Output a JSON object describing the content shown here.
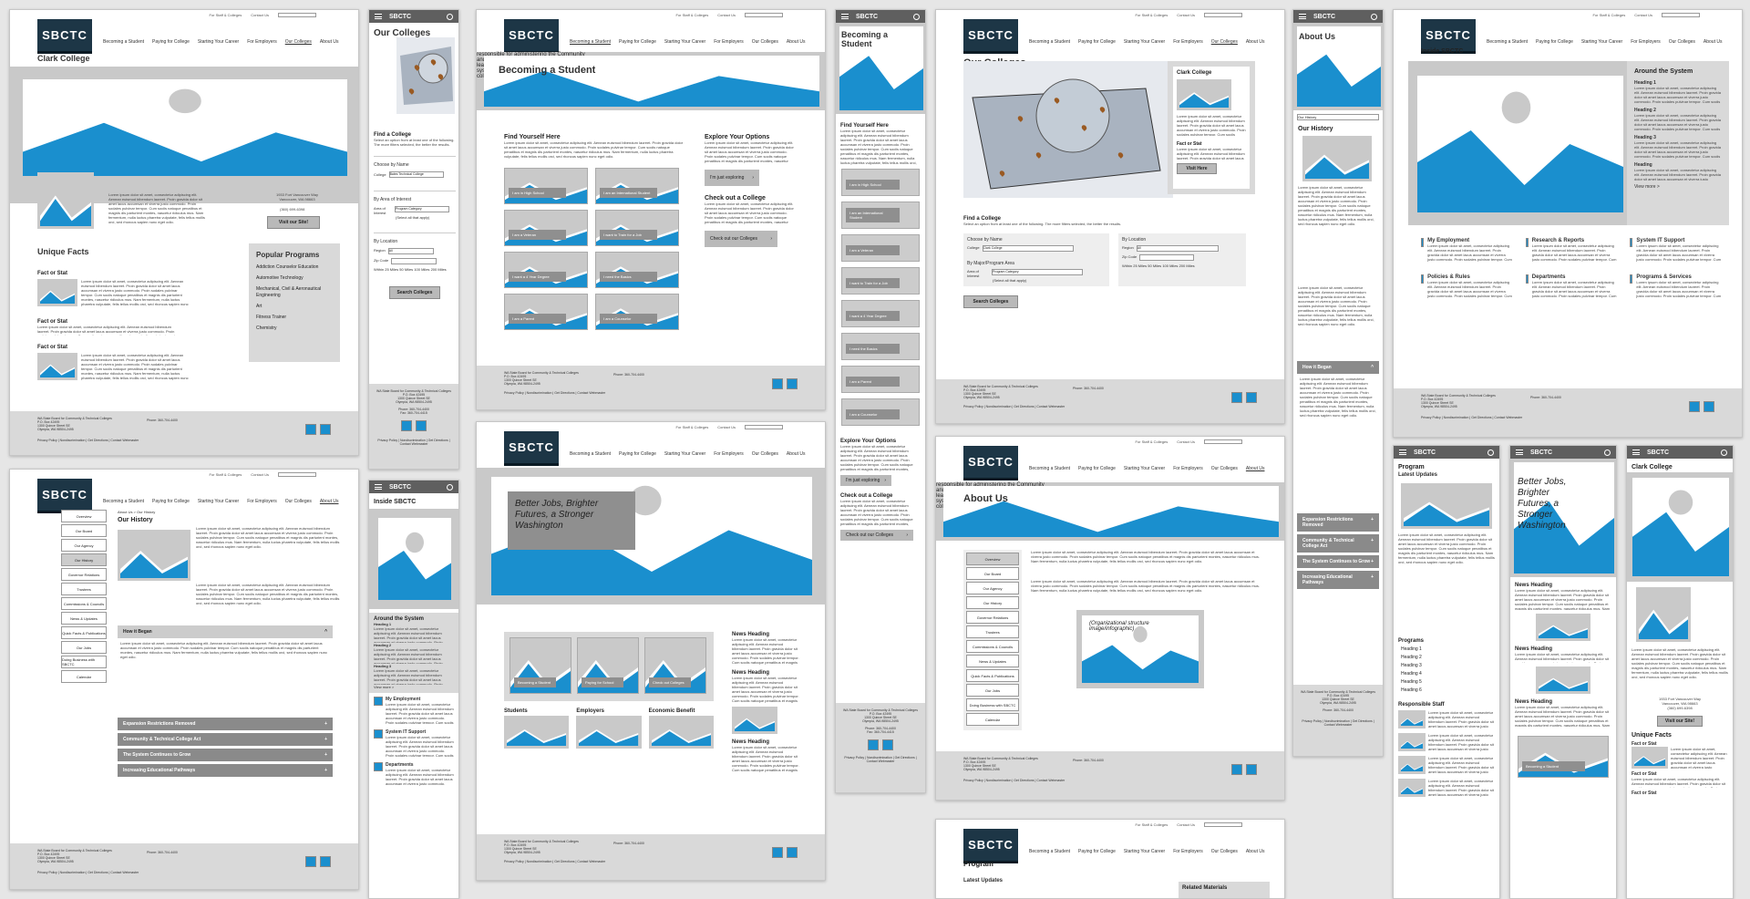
{
  "brand": {
    "logo_text": "SBCTC",
    "mobile_title": "SBCTC"
  },
  "utility": {
    "staff": "For Staff & Colleges",
    "contact": "Contact Us"
  },
  "nav": [
    "Becoming a Student",
    "Paying for College",
    "Starting Your Career",
    "For Employers",
    "Our Colleges",
    "About Us"
  ],
  "clark": {
    "title": "Clark College",
    "address": "1933 Fort Vancouver Way\nVancouver, WA 98663",
    "phone": "(360) 699-6398",
    "visit": "Visit our Site!",
    "facts_title": "Unique Facts",
    "fact_label": "Fact or Stat",
    "programs_title": "Popular Programs",
    "programs": [
      "Addiction Counselor Education",
      "Automotive Technology",
      "Mechanical, Civil & Aeronautical Engineering",
      "Art",
      "Fitness Trainer",
      "Chemistry"
    ]
  },
  "colleges": {
    "title": "Our Colleges",
    "find": "Find a College",
    "find_desc": "Select an option from at least one of the following. The more filters selected, the better the results.",
    "by_name": "Choose by Name",
    "college_label": "College",
    "college_value": "Bates Technical College",
    "college_value_wide": "Clark College",
    "by_area": "By Area of Interest",
    "by_major": "By Major/Program Area",
    "area_label": "Area of Interest",
    "area_value": "Program Category",
    "area_hint": "(Select all that apply)",
    "by_location": "By Location",
    "region_label": "Region",
    "region_value": "All",
    "zip_label": "Zip Code",
    "within_label": "Within",
    "radii": [
      "25 Miles",
      "50 Miles",
      "100 Miles",
      "200 Miles"
    ],
    "search_btn": "Search Colleges",
    "popup_title": "Clark College",
    "popup_fact": "Fact or Stat",
    "popup_btn": "Visit Here"
  },
  "becoming": {
    "title": "Becoming a Student",
    "hero_text": "responsible for administering the Community and Technical College Act and providing leadership and coordination for Washington's system of 34 public community and technical colleges.",
    "find_title": "Find Yourself Here",
    "tiles": [
      "I am in High School",
      "I am an International Student",
      "I am a Veteran",
      "I want to Train for a Job",
      "I want a 4 Year Degree",
      "I need the Basics",
      "I am a Parent",
      "I am a Counselor"
    ],
    "explore_title": "Explore Your Options",
    "explore_btn": "I'm just exploring",
    "check_title": "Check out a College",
    "check_btn": "Check out our Colleges"
  },
  "about": {
    "title": "About Us",
    "history_title": "Our History",
    "crumb": "About Us > Our History",
    "select_value": "Our History",
    "menu": [
      "Overview",
      "Our Board",
      "Our Agency",
      "Our History",
      "Governor Relations",
      "Trustees",
      "Commissions & Councils",
      "News & Updates",
      "Quick Facts & Publications",
      "Our Jobs",
      "Doing Business with SBCTC",
      "Calendar"
    ],
    "org_caption": "(Organizational structure image/infographic)",
    "accordions": [
      "How it Began",
      "Expansion Restrictions Removed",
      "Community & Technical College Act",
      "The System Continues to Grow",
      "Increasing Educational Pathways"
    ]
  },
  "inside": {
    "title": "Inside SBCTC",
    "around_title": "Around the System",
    "headings": [
      "Heading 1",
      "Heading 2",
      "Heading 3",
      "Heading"
    ],
    "view_more": "View more >",
    "view_more_m": "View more >",
    "cards": [
      "My Employment",
      "Research & Reports",
      "System IT Support",
      "Policies & Rules",
      "Departments",
      "Programs & Services"
    ]
  },
  "home": {
    "hero_text": "Better Jobs, Brighter Futures, a Stronger Washington",
    "tiles": [
      "Becoming a Student",
      "Paying for School",
      "Check out Colleges"
    ],
    "benefits": [
      "Students",
      "Employers",
      "Economic Benefit"
    ],
    "news_heading": "News Heading"
  },
  "program": {
    "title": "Program",
    "latest": "Latest Updates",
    "related": "Related Materials",
    "programs_title": "Programs",
    "program_items": [
      "Heading 1",
      "Heading 2",
      "Heading 3",
      "Heading 4",
      "Heading 5",
      "Heading 6"
    ],
    "staff_title": "Responsible Staff"
  },
  "footer": {
    "org": "WA State Board for Community & Technical Colleges",
    "box": "P.O. Box 42495",
    "street": "1300 Quince Street SE",
    "city": "Olympia, WA 98504-2495",
    "phone": "Phone: 360-704-4400",
    "fax": "Fax: 360-704-4415",
    "links": "Privacy Policy | Nondiscrimination | Get Directions | Contact Webmaster"
  },
  "lorem": "Lorem ipsum dolor sit amet, consectetur adipiscing elit. Aenean euismod bibendum laoreet. Proin gravida dolor sit amet lacus accumsan et viverra justo commodo. Proin sodales pulvinar tempor. Cum sociis natoque penatibus et magnis dis parturient montes, nascetur ridiculus mus. Nam fermentum, nulla luctus pharetra vulputate, felis tellus mollis orci, sed rhoncus sapien nunc eget odio.",
  "colors": {
    "accent": "#1a8fce",
    "placeholder": "#c9c9c9",
    "button": "#b9b9b9",
    "footer": "#d9d9d9",
    "header_dark": "#1d3646"
  }
}
